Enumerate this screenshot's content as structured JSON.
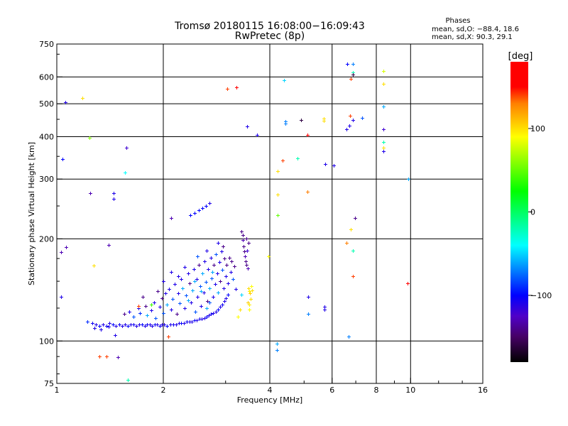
{
  "chart_data": {
    "type": "scatter",
    "title": "Tromsø 20180115 16:08:00−16:09:43",
    "subtitle": "RwPretec (8p)",
    "xlabel": "Frequency [MHz]",
    "ylabel": "Stationary phase Virtual Height [km]",
    "xscale": "log",
    "yscale": "log",
    "xlim": [
      1,
      16
    ],
    "ylim": [
      75,
      750
    ],
    "xticks": [
      "1",
      "2",
      "4",
      "6",
      "8",
      "10",
      "16"
    ],
    "xtick_values": [
      1,
      2,
      4,
      6,
      8,
      10,
      16
    ],
    "xgrid": [
      2,
      4,
      6,
      8,
      10
    ],
    "yticks": [
      "75",
      "100",
      "200",
      "300",
      "400",
      "500",
      "600",
      "750"
    ],
    "ytick_values": [
      75,
      100,
      200,
      300,
      400,
      500,
      600,
      750
    ],
    "ygrid": [
      100,
      200,
      300,
      400,
      500,
      600
    ],
    "grid": true,
    "stats": {
      "heading": "Phases",
      "line_o": "mean, sd,O: −88.4, 18.6",
      "line_x": "mean, sd,X:  90.3, 29.1"
    },
    "colorbar": {
      "label": "[deg]",
      "range": [
        -180,
        180
      ],
      "ticks": [
        "100",
        "0",
        "−100"
      ],
      "tick_values": [
        100,
        0,
        -100
      ]
    },
    "point_format": [
      "frequency_MHz",
      "height_km",
      "phase_deg"
    ],
    "points": [
      [
        1.26,
        113,
        -105
      ],
      [
        1.29,
        112,
        -110
      ],
      [
        1.32,
        111,
        -100
      ],
      [
        1.35,
        112,
        -110
      ],
      [
        1.38,
        111,
        -105
      ],
      [
        1.41,
        113,
        -110
      ],
      [
        1.44,
        112,
        -100
      ],
      [
        1.47,
        111,
        -110
      ],
      [
        1.5,
        112,
        -105
      ],
      [
        1.53,
        111,
        -110
      ],
      [
        1.56,
        112,
        -110
      ],
      [
        1.59,
        111,
        -100
      ],
      [
        1.62,
        112,
        -110
      ],
      [
        1.65,
        112,
        -105
      ],
      [
        1.68,
        111,
        -110
      ],
      [
        1.71,
        112,
        -110
      ],
      [
        1.74,
        112,
        -100
      ],
      [
        1.77,
        111,
        -110
      ],
      [
        1.8,
        112,
        -105
      ],
      [
        1.83,
        112,
        -110
      ],
      [
        1.86,
        111,
        -110
      ],
      [
        1.89,
        112,
        -100
      ],
      [
        1.92,
        112,
        -110
      ],
      [
        1.95,
        111,
        -105
      ],
      [
        1.98,
        112,
        -110
      ],
      [
        2.01,
        112,
        -110
      ],
      [
        2.05,
        111,
        -100
      ],
      [
        2.09,
        112,
        -110
      ],
      [
        2.13,
        112,
        -105
      ],
      [
        2.17,
        112,
        -110
      ],
      [
        2.21,
        113,
        -110
      ],
      [
        2.25,
        113,
        -100
      ],
      [
        2.29,
        113,
        -110
      ],
      [
        2.33,
        114,
        -105
      ],
      [
        2.37,
        114,
        -110
      ],
      [
        2.41,
        114,
        -110
      ],
      [
        2.45,
        115,
        -100
      ],
      [
        2.49,
        115,
        -110
      ],
      [
        2.53,
        116,
        -105
      ],
      [
        2.57,
        116,
        -110
      ],
      [
        2.61,
        117,
        -110
      ],
      [
        2.65,
        118,
        -100
      ],
      [
        2.69,
        119,
        -110
      ],
      [
        2.73,
        120,
        -105
      ],
      [
        2.77,
        121,
        -110
      ],
      [
        2.81,
        122,
        -110
      ],
      [
        2.85,
        124,
        -100
      ],
      [
        2.89,
        126,
        -110
      ],
      [
        2.93,
        128,
        -105
      ],
      [
        2.97,
        131,
        -110
      ],
      [
        3.01,
        134,
        -110
      ],
      [
        3.05,
        137,
        -100
      ],
      [
        1.28,
        109,
        -110
      ],
      [
        1.33,
        108,
        -110
      ],
      [
        1.22,
        114,
        -90
      ],
      [
        1.4,
        110,
        -110
      ],
      [
        1.55,
        120,
        -140
      ],
      [
        1.6,
        122,
        -110
      ],
      [
        1.65,
        118,
        -80
      ],
      [
        1.7,
        125,
        -110
      ],
      [
        1.72,
        121,
        -90
      ],
      [
        1.78,
        127,
        -140
      ],
      [
        1.8,
        119,
        -60
      ],
      [
        1.85,
        123,
        -110
      ],
      [
        1.88,
        130,
        -110
      ],
      [
        1.9,
        117,
        -80
      ],
      [
        1.95,
        126,
        -110
      ],
      [
        1.98,
        134,
        -140
      ],
      [
        2.0,
        121,
        -80
      ],
      [
        2.03,
        138,
        -110
      ],
      [
        2.05,
        128,
        -60
      ],
      [
        2.08,
        142,
        -110
      ],
      [
        2.1,
        124,
        -110
      ],
      [
        2.12,
        133,
        -80
      ],
      [
        2.15,
        147,
        -110
      ],
      [
        2.18,
        120,
        -140
      ],
      [
        2.2,
        138,
        -110
      ],
      [
        2.22,
        129,
        -80
      ],
      [
        2.25,
        152,
        -110
      ],
      [
        2.27,
        143,
        -60
      ],
      [
        2.3,
        125,
        -110
      ],
      [
        2.32,
        136,
        -80
      ],
      [
        2.35,
        158,
        -110
      ],
      [
        2.37,
        148,
        -140
      ],
      [
        2.4,
        130,
        -110
      ],
      [
        2.42,
        141,
        -60
      ],
      [
        2.44,
        163,
        -110
      ],
      [
        2.46,
        122,
        -80
      ],
      [
        2.48,
        152,
        -110
      ],
      [
        2.5,
        135,
        -110
      ],
      [
        2.52,
        168,
        -140
      ],
      [
        2.54,
        145,
        -80
      ],
      [
        2.56,
        127,
        -110
      ],
      [
        2.58,
        158,
        -60
      ],
      [
        2.6,
        139,
        -110
      ],
      [
        2.62,
        172,
        -110
      ],
      [
        2.64,
        149,
        -80
      ],
      [
        2.66,
        131,
        -140
      ],
      [
        2.68,
        163,
        -110
      ],
      [
        2.7,
        143,
        -60
      ],
      [
        2.72,
        176,
        -110
      ],
      [
        2.74,
        153,
        -80
      ],
      [
        2.76,
        135,
        -110
      ],
      [
        2.78,
        168,
        -140
      ],
      [
        2.8,
        147,
        -110
      ],
      [
        2.82,
        180,
        -80
      ],
      [
        2.84,
        158,
        -110
      ],
      [
        2.86,
        139,
        -60
      ],
      [
        2.88,
        171,
        -110
      ],
      [
        2.9,
        150,
        -140
      ],
      [
        2.92,
        184,
        -110
      ],
      [
        2.94,
        162,
        -80
      ],
      [
        2.96,
        143,
        -110
      ],
      [
        2.98,
        175,
        -140
      ],
      [
        3.0,
        155,
        -110
      ],
      [
        3.02,
        168,
        -140
      ],
      [
        3.05,
        148,
        -110
      ],
      [
        3.08,
        176,
        -140
      ],
      [
        3.1,
        160,
        -110
      ],
      [
        3.12,
        172,
        -140
      ],
      [
        3.15,
        152,
        -80
      ],
      [
        3.18,
        166,
        -140
      ],
      [
        3.2,
        142,
        -110
      ],
      [
        2.3,
        165,
        -110
      ],
      [
        2.5,
        178,
        -80
      ],
      [
        2.65,
        185,
        -110
      ],
      [
        2.85,
        195,
        -110
      ],
      [
        2.95,
        190,
        -140
      ],
      [
        2.2,
        155,
        -110
      ],
      [
        2.45,
        150,
        -60
      ],
      [
        2.55,
        140,
        -60
      ],
      [
        2.75,
        160,
        -60
      ],
      [
        2.35,
        132,
        -60
      ],
      [
        1.93,
        140,
        -140
      ],
      [
        1.75,
        135,
        -140
      ],
      [
        2.0,
        150,
        -110
      ],
      [
        2.1,
        160,
        -110
      ],
      [
        2.65,
        125,
        -60
      ],
      [
        2.7,
        130,
        -80
      ],
      [
        1.85,
        128,
        40
      ],
      [
        1.7,
        127,
        140
      ],
      [
        3.33,
        210,
        -140
      ],
      [
        3.35,
        205,
        -140
      ],
      [
        3.36,
        198,
        -130
      ],
      [
        3.37,
        190,
        -140
      ],
      [
        3.38,
        184,
        -140
      ],
      [
        3.4,
        178,
        -130
      ],
      [
        3.42,
        172,
        -140
      ],
      [
        3.44,
        168,
        -140
      ],
      [
        3.46,
        164,
        -130
      ],
      [
        3.48,
        195,
        -140
      ],
      [
        3.45,
        185,
        -120
      ],
      [
        3.43,
        200,
        -140
      ],
      [
        3.48,
        143,
        100
      ],
      [
        3.5,
        140,
        95
      ],
      [
        3.52,
        138,
        105
      ],
      [
        3.55,
        145,
        90
      ],
      [
        3.53,
        133,
        100
      ],
      [
        3.5,
        128,
        95
      ],
      [
        3.47,
        130,
        105
      ],
      [
        3.56,
        141,
        100
      ],
      [
        3.5,
        124,
        90
      ],
      [
        3.25,
        118,
        90
      ],
      [
        3.3,
        124,
        100
      ],
      [
        3.32,
        137,
        -50
      ],
      [
        1.057,
        505,
        -110
      ],
      [
        1.18,
        520,
        100
      ],
      [
        1.237,
        397,
        60
      ],
      [
        1.57,
        372,
        -120
      ],
      [
        1.56,
        313,
        -40
      ],
      [
        1.04,
        344,
        -100
      ],
      [
        1.24,
        273,
        -130
      ],
      [
        1.45,
        273,
        -110
      ],
      [
        1.45,
        262,
        -110
      ],
      [
        2.1,
        230,
        -130
      ],
      [
        2.38,
        235,
        -100
      ],
      [
        2.45,
        238,
        -100
      ],
      [
        2.52,
        243,
        -100
      ],
      [
        2.58,
        246,
        -100
      ],
      [
        2.64,
        250,
        -100
      ],
      [
        2.7,
        255,
        -110
      ],
      [
        3.03,
        553,
        140
      ],
      [
        3.22,
        559,
        150
      ],
      [
        3.45,
        429,
        -110
      ],
      [
        3.68,
        405,
        -110
      ],
      [
        4.39,
        586,
        -50
      ],
      [
        4.43,
        443,
        -70
      ],
      [
        4.43,
        437,
        -70
      ],
      [
        4.9,
        449,
        -160
      ],
      [
        5.1,
        405,
        160
      ],
      [
        4.35,
        341,
        140
      ],
      [
        4.2,
        316,
        100
      ],
      [
        4.8,
        346,
        -20
      ],
      [
        5.69,
        453,
        100
      ],
      [
        5.69,
        445,
        100
      ],
      [
        5.74,
        333,
        -110
      ],
      [
        6.06,
        329,
        -110
      ],
      [
        5.1,
        276,
        130
      ],
      [
        4.2,
        270,
        100
      ],
      [
        4.21,
        235,
        50
      ],
      [
        3.96,
        178,
        90
      ],
      [
        6.63,
        655,
        -100
      ],
      [
        6.86,
        655,
        -70
      ],
      [
        6.86,
        620,
        -20
      ],
      [
        6.86,
        610,
        -160
      ],
      [
        6.76,
        593,
        140
      ],
      [
        8.37,
        624,
        80
      ],
      [
        8.37,
        574,
        100
      ],
      [
        8.37,
        491,
        -60
      ],
      [
        8.37,
        421,
        -120
      ],
      [
        8.37,
        386,
        -20
      ],
      [
        8.37,
        372,
        100
      ],
      [
        8.37,
        362,
        -110
      ],
      [
        6.74,
        461,
        140
      ],
      [
        6.86,
        447,
        -110
      ],
      [
        6.58,
        421,
        -110
      ],
      [
        6.7,
        430,
        -110
      ],
      [
        7.3,
        455,
        -80
      ],
      [
        9.85,
        300,
        -60
      ],
      [
        6.97,
        230,
        -140
      ],
      [
        6.76,
        213,
        100
      ],
      [
        6.58,
        195,
        130
      ],
      [
        6.86,
        185,
        -20
      ],
      [
        6.86,
        155,
        140
      ],
      [
        9.8,
        148,
        170
      ],
      [
        5.13,
        135,
        -110
      ],
      [
        5.13,
        120,
        -70
      ],
      [
        5.7,
        126,
        -110
      ],
      [
        5.7,
        124,
        -110
      ],
      [
        6.68,
        103,
        -70
      ],
      [
        4.19,
        98,
        -60
      ],
      [
        4.19,
        94,
        -70
      ],
      [
        1.32,
        90,
        140
      ],
      [
        1.38,
        90,
        140
      ],
      [
        1.59,
        77,
        -20
      ],
      [
        1.49,
        89.5,
        -130
      ],
      [
        1.03,
        183,
        -130
      ],
      [
        1.06,
        189,
        -130
      ],
      [
        1.03,
        135,
        -110
      ],
      [
        1.27,
        167,
        100
      ],
      [
        1.4,
        192,
        -130
      ],
      [
        1.46,
        104,
        -110
      ],
      [
        2.07,
        103,
        140
      ]
    ]
  }
}
